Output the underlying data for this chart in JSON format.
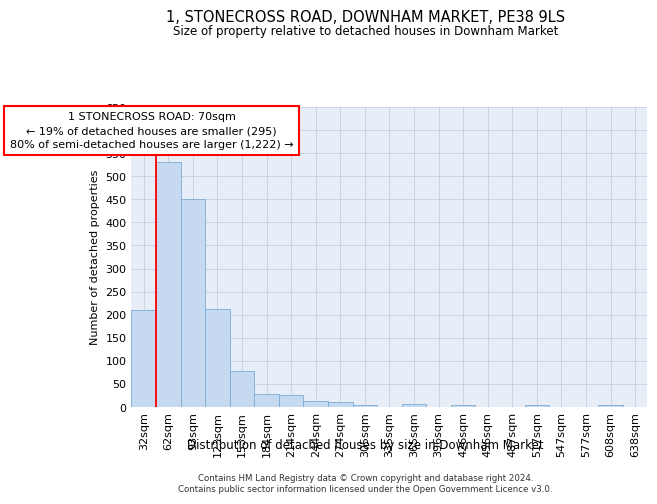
{
  "title": "1, STONECROSS ROAD, DOWNHAM MARKET, PE38 9LS",
  "subtitle": "Size of property relative to detached houses in Downham Market",
  "xlabel": "Distribution of detached houses by size in Downham Market",
  "ylabel": "Number of detached properties",
  "categories": [
    "32sqm",
    "62sqm",
    "93sqm",
    "123sqm",
    "153sqm",
    "184sqm",
    "214sqm",
    "244sqm",
    "274sqm",
    "305sqm",
    "335sqm",
    "365sqm",
    "396sqm",
    "426sqm",
    "456sqm",
    "487sqm",
    "517sqm",
    "547sqm",
    "577sqm",
    "608sqm",
    "638sqm"
  ],
  "values": [
    210,
    530,
    450,
    213,
    78,
    28,
    25,
    14,
    10,
    5,
    0,
    7,
    0,
    5,
    0,
    0,
    5,
    0,
    0,
    5,
    0
  ],
  "bar_color": "#c5d9f0",
  "bar_edge_color": "#7aadd4",
  "grid_color": "#c8d4e8",
  "bg_color": "#e8eef8",
  "annotation_box_text": "1 STONECROSS ROAD: 70sqm\n← 19% of detached houses are smaller (295)\n80% of semi-detached houses are larger (1,222) →",
  "property_line_x": 1.0,
  "ylim": [
    0,
    650
  ],
  "yticks": [
    0,
    50,
    100,
    150,
    200,
    250,
    300,
    350,
    400,
    450,
    500,
    550,
    600,
    650
  ],
  "footnote1": "Contains HM Land Registry data © Crown copyright and database right 2024.",
  "footnote2": "Contains public sector information licensed under the Open Government Licence v3.0."
}
